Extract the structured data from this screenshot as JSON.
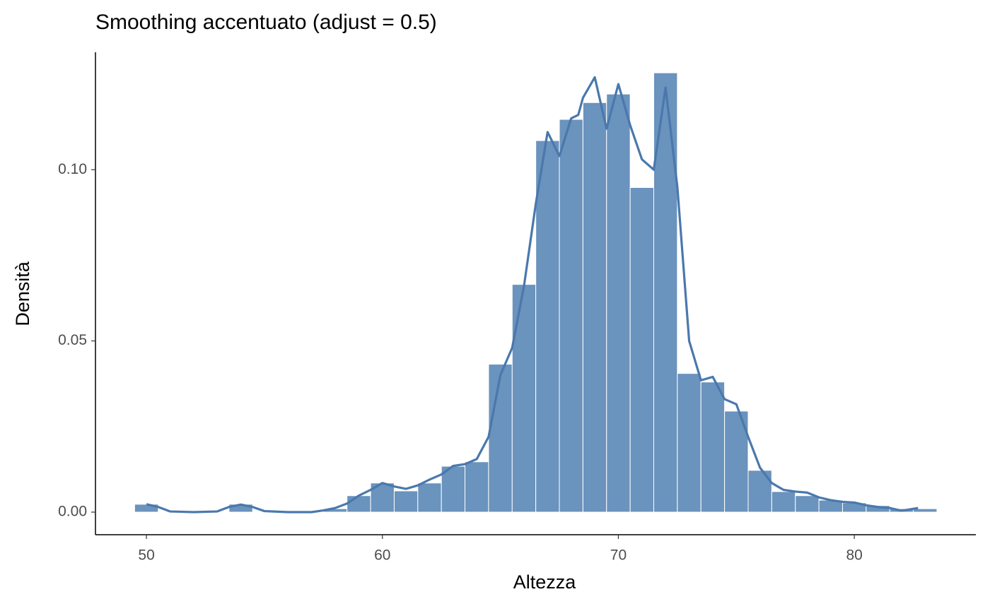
{
  "chart_data": {
    "type": "histogram",
    "title": "Smoothing accentuato (adjust = 0.5)",
    "x_label": "Altezza",
    "y_label": "Densità",
    "bins": [
      49.5,
      50.5,
      51.5,
      52.5,
      53.5,
      54.5,
      55.5,
      56.5,
      57.5,
      58.5,
      59.5,
      60.5,
      61.5,
      62.5,
      63.5,
      64.5,
      65.5,
      66.5,
      67.5,
      68.5,
      69.5,
      70.5,
      71.5,
      72.5,
      73.5,
      74.5,
      75.5,
      76.5,
      77.5,
      78.5,
      79.5,
      80.5,
      81.5,
      82.5,
      83.5
    ],
    "values": [
      0.0023,
      0,
      0,
      0,
      0.0023,
      0,
      0,
      0,
      0.001,
      0.0048,
      0.0085,
      0.0062,
      0.0085,
      0.0134,
      0.0147,
      0.0432,
      0.0665,
      0.1085,
      0.1147,
      0.1196,
      0.1221,
      0.0948,
      0.1283,
      0.0405,
      0.038,
      0.0295,
      0.0122,
      0.006,
      0.0048,
      0.0035,
      0.0027,
      0.0019,
      0.001,
      0.001
    ],
    "color": "#6a93bd",
    "density": {
      "color": "#4a78ad",
      "x": [
        50,
        50.5,
        51,
        52,
        53,
        53.5,
        54,
        54.5,
        55,
        56,
        57,
        57.5,
        58,
        58.5,
        59,
        59.5,
        60,
        60.5,
        61,
        61.5,
        62,
        62.5,
        63,
        63.5,
        64,
        64.5,
        65,
        65.5,
        66,
        66.5,
        67,
        67.5,
        68,
        68.3,
        68.5,
        69,
        69.5,
        70,
        70.5,
        71,
        71.5,
        72,
        72.5,
        73,
        73.5,
        74,
        74.5,
        75,
        75.5,
        76,
        76.5,
        77,
        77.5,
        78,
        78.5,
        79,
        79.5,
        80,
        80.5,
        81,
        81.5,
        82,
        82.7
      ],
      "values": [
        0.0023,
        0.0015,
        0.0002,
        0,
        0.0002,
        0.0015,
        0.0022,
        0.0015,
        0.0003,
        0,
        0,
        0.0005,
        0.0012,
        0.0025,
        0.0048,
        0.0065,
        0.0085,
        0.0075,
        0.0068,
        0.0078,
        0.0095,
        0.011,
        0.0135,
        0.014,
        0.0155,
        0.022,
        0.04,
        0.048,
        0.066,
        0.09,
        0.111,
        0.104,
        0.115,
        0.116,
        0.121,
        0.127,
        0.112,
        0.125,
        0.113,
        0.103,
        0.1,
        0.124,
        0.095,
        0.05,
        0.0385,
        0.0395,
        0.033,
        0.0315,
        0.022,
        0.013,
        0.0085,
        0.0065,
        0.006,
        0.0057,
        0.0043,
        0.0035,
        0.003,
        0.0028,
        0.002,
        0.0015,
        0.0012,
        0.0004,
        0.0012
      ]
    },
    "xlim": [
      47.84,
      85.15
    ],
    "ylim": [
      -0.0066,
      0.1343
    ],
    "xticks": [
      50,
      60,
      70,
      80
    ],
    "yticks": [
      {
        "value": 0,
        "label": "0.00"
      },
      0.05,
      {
        "value": 0.1,
        "label": "0.10"
      }
    ]
  }
}
